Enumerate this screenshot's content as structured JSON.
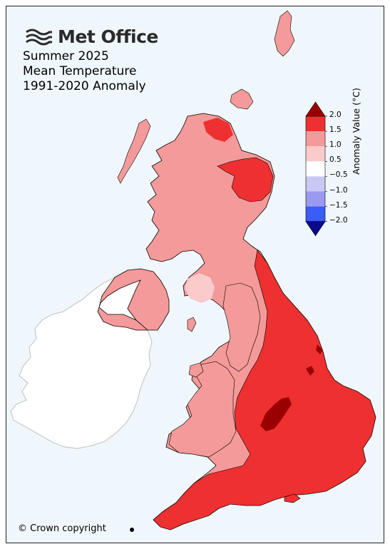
{
  "brand": {
    "name": "Met Office",
    "logo_icon": "met-office-wave-icon"
  },
  "title": {
    "line1": "Summer 2025",
    "line2": "Mean Temperature",
    "line3": "1991-2020 Anomaly"
  },
  "copyright": "© Crown copyright",
  "legend": {
    "label": "Anomaly Value (°C)",
    "ticks": [
      "2.0",
      "1.5",
      "1.0",
      "0.5",
      "−0.5",
      "−1.0",
      "−1.5",
      "−2.0"
    ],
    "bins": [
      {
        "range": ">2.0",
        "color": "#9b0000"
      },
      {
        "range": "1.5 to 2.0",
        "color": "#ee3030"
      },
      {
        "range": "1.0 to 1.5",
        "color": "#f59a9a"
      },
      {
        "range": "0.5 to 1.0",
        "color": "#fbcaca"
      },
      {
        "range": "-0.5 to 0.5",
        "color": "#ffffff"
      },
      {
        "range": "-1.0 to -0.5",
        "color": "#c8c8f4"
      },
      {
        "range": "-1.5 to -1.0",
        "color": "#9a9af0"
      },
      {
        "range": "-2.0 to -1.5",
        "color": "#3a5cf8"
      },
      {
        "range": "<-2.0",
        "color": "#0a0a8c"
      }
    ]
  },
  "colors": {
    "sea": "#f0f7fc",
    "ireland": "#ffffff",
    "ireland_border": "#c8c8c8",
    "uk_border": "#000000"
  }
}
